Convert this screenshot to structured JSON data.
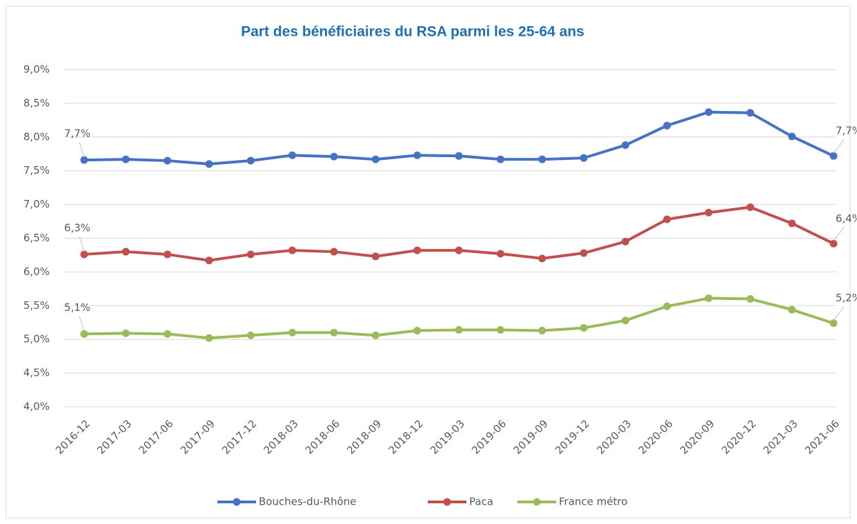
{
  "chart_data": {
    "type": "line",
    "title": "Part des bénéficiaires du RSA parmi les 25-64 ans",
    "categories": [
      "2016-12",
      "2017-03",
      "2017-06",
      "2017-09",
      "2017-12",
      "2018-03",
      "2018-06",
      "2018-09",
      "2018-12",
      "2019-03",
      "2019-06",
      "2019-09",
      "2019-12",
      "2020-03",
      "2020-06",
      "2020-09",
      "2020-12",
      "2021-03",
      "2021-06"
    ],
    "series": [
      {
        "name": "Bouches-du-Rhône",
        "color": "#4472c4",
        "values": [
          7.66,
          7.67,
          7.65,
          7.6,
          7.65,
          7.73,
          7.71,
          7.67,
          7.73,
          7.72,
          7.67,
          7.67,
          7.69,
          7.88,
          8.17,
          8.37,
          8.36,
          8.01,
          7.72
        ],
        "value_labels": [
          "7,7%",
          null,
          null,
          null,
          null,
          null,
          null,
          null,
          null,
          null,
          null,
          null,
          null,
          null,
          null,
          null,
          null,
          null,
          "7,7%"
        ]
      },
      {
        "name": "Paca",
        "color": "#c0504d",
        "values": [
          6.26,
          6.3,
          6.26,
          6.17,
          6.26,
          6.32,
          6.3,
          6.23,
          6.32,
          6.32,
          6.27,
          6.2,
          6.28,
          6.45,
          6.78,
          6.88,
          6.96,
          6.72,
          6.42
        ],
        "value_labels": [
          "6,3%",
          null,
          null,
          null,
          null,
          null,
          null,
          null,
          null,
          null,
          null,
          null,
          null,
          null,
          null,
          null,
          null,
          null,
          "6,4%"
        ]
      },
      {
        "name": "France métro",
        "color": "#9bbb59",
        "values": [
          5.08,
          5.09,
          5.08,
          5.02,
          5.06,
          5.1,
          5.1,
          5.06,
          5.13,
          5.14,
          5.14,
          5.13,
          5.17,
          5.28,
          5.49,
          5.61,
          5.6,
          5.44,
          5.24
        ],
        "value_labels": [
          "5,1%",
          null,
          null,
          null,
          null,
          null,
          null,
          null,
          null,
          null,
          null,
          null,
          null,
          null,
          null,
          null,
          null,
          null,
          "5,2%"
        ]
      }
    ],
    "ylim": [
      4,
      9
    ],
    "yticks": [
      {
        "value": 4,
        "label": "4,0%"
      },
      {
        "value": 4.5,
        "label": "4,5%"
      },
      {
        "value": 5,
        "label": "5,0%"
      },
      {
        "value": 5.5,
        "label": "5,5%"
      },
      {
        "value": 6,
        "label": "6,0%"
      },
      {
        "value": 6.5,
        "label": "6,5%"
      },
      {
        "value": 7,
        "label": "7,0%"
      },
      {
        "value": 7.5,
        "label": "7,5%"
      },
      {
        "value": 8,
        "label": "8,0%"
      },
      {
        "value": 8.5,
        "label": "8,5%"
      },
      {
        "value": 9,
        "label": "9,0%"
      }
    ],
    "grid": true,
    "legend": "bottom"
  }
}
